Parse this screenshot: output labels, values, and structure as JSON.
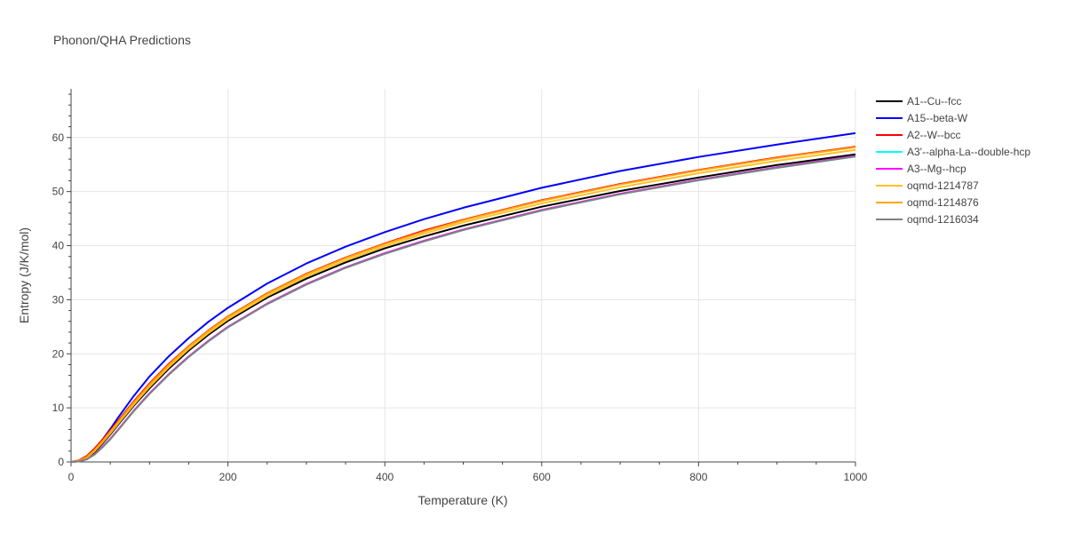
{
  "chart_data": {
    "type": "line",
    "title": "Phonon/QHA Predictions",
    "xlabel": "Temperature (K)",
    "ylabel": "Entropy (J/K/mol)",
    "xlim": [
      0,
      1000
    ],
    "ylim": [
      0,
      69
    ],
    "xticks": [
      0,
      200,
      400,
      600,
      800,
      1000
    ],
    "yticks": [
      0,
      10,
      20,
      30,
      40,
      50,
      60
    ],
    "grid": true,
    "legend_position": "right",
    "x": [
      0,
      10,
      20,
      30,
      40,
      50,
      60,
      80,
      100,
      125,
      150,
      175,
      200,
      250,
      300,
      350,
      400,
      450,
      500,
      600,
      700,
      800,
      900,
      1000
    ],
    "series": [
      {
        "name": "A1--Cu--fcc",
        "color": "#000000",
        "values": [
          0,
          0.1,
          0.6,
          1.8,
          3.4,
          5.1,
          6.9,
          10.4,
          13.6,
          17.3,
          20.6,
          23.5,
          26.1,
          30.4,
          33.9,
          36.9,
          39.5,
          41.7,
          43.7,
          47.2,
          50.1,
          52.6,
          54.9,
          56.9
        ]
      },
      {
        "name": "A15--beta-W",
        "color": "#0000ff",
        "values": [
          0,
          0.2,
          0.9,
          2.3,
          4.1,
          6.1,
          8.2,
          12.2,
          15.8,
          19.6,
          22.9,
          25.9,
          28.5,
          33.0,
          36.7,
          39.8,
          42.5,
          44.9,
          47.0,
          50.7,
          53.8,
          56.4,
          58.7,
          60.8
        ]
      },
      {
        "name": "A2--W--bcc",
        "color": "#ff0000",
        "values": [
          0,
          0.3,
          1.1,
          2.5,
          4.1,
          5.8,
          7.6,
          11.2,
          14.5,
          18.2,
          21.4,
          24.3,
          26.9,
          31.2,
          34.8,
          37.8,
          40.4,
          42.8,
          44.8,
          48.4,
          51.4,
          54.0,
          56.3,
          58.3
        ]
      },
      {
        "name": "A3'--alpha-La--double-hcp",
        "color": "#00ffff",
        "values": [
          0,
          0.1,
          0.5,
          1.4,
          2.7,
          4.2,
          5.9,
          9.4,
          12.6,
          16.2,
          19.4,
          22.3,
          24.9,
          29.2,
          32.8,
          35.9,
          38.5,
          40.8,
          42.9,
          46.5,
          49.5,
          52.1,
          54.4,
          56.5
        ]
      },
      {
        "name": "A3--Mg--hcp",
        "color": "#ff00ff",
        "values": [
          0,
          0.1,
          0.5,
          1.4,
          2.8,
          4.3,
          6.0,
          9.5,
          12.7,
          16.3,
          19.5,
          22.4,
          25.0,
          29.3,
          32.9,
          36.0,
          38.6,
          40.9,
          43.0,
          46.6,
          49.6,
          52.2,
          54.5,
          56.6
        ]
      },
      {
        "name": "oqmd-1214787",
        "color": "#ffc125",
        "values": [
          0,
          0.2,
          0.8,
          2.0,
          3.6,
          5.3,
          7.1,
          10.6,
          13.9,
          17.6,
          20.9,
          23.8,
          26.4,
          30.7,
          34.3,
          37.3,
          39.9,
          42.2,
          44.3,
          47.8,
          50.8,
          53.4,
          55.7,
          57.7
        ]
      },
      {
        "name": "oqmd-1214876",
        "color": "#ffa500",
        "values": [
          0,
          0.2,
          0.9,
          2.2,
          3.8,
          5.6,
          7.4,
          11.0,
          14.3,
          18.0,
          21.3,
          24.2,
          26.8,
          31.1,
          34.7,
          37.7,
          40.3,
          42.6,
          44.7,
          48.3,
          51.3,
          53.9,
          56.2,
          58.2
        ]
      },
      {
        "name": "oqmd-1216034",
        "color": "#808080",
        "values": [
          0,
          0.1,
          0.5,
          1.4,
          2.7,
          4.2,
          5.9,
          9.4,
          12.6,
          16.2,
          19.4,
          22.3,
          24.9,
          29.2,
          32.8,
          35.9,
          38.5,
          40.8,
          42.9,
          46.5,
          49.5,
          52.1,
          54.4,
          56.5
        ]
      }
    ]
  }
}
